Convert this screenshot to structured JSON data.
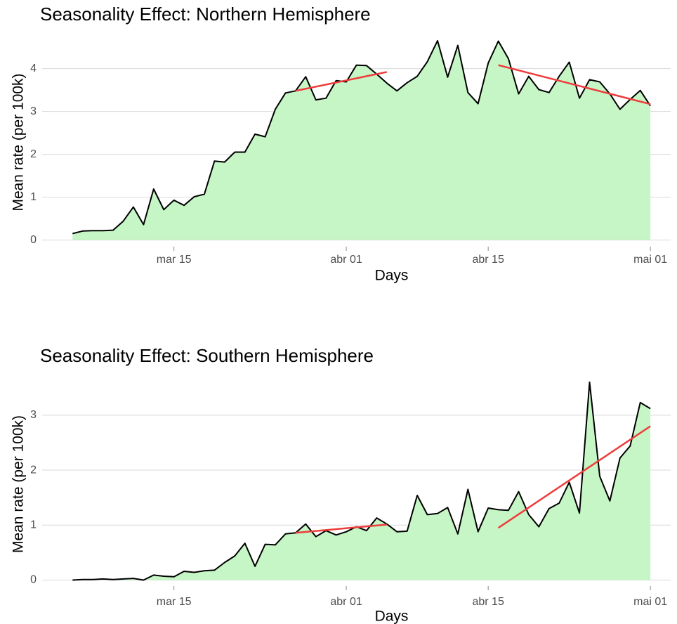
{
  "chart_data": [
    {
      "type": "area",
      "title": "Seasonality Effect: Northern Hemisphere",
      "xlabel": "Days",
      "ylabel": "Mean rate (per 100k)",
      "x": [
        "03-05",
        "03-06",
        "03-07",
        "03-08",
        "03-09",
        "03-10",
        "03-11",
        "03-12",
        "03-13",
        "03-14",
        "03-15",
        "03-16",
        "03-17",
        "03-18",
        "03-19",
        "03-20",
        "03-21",
        "03-22",
        "03-23",
        "03-24",
        "03-25",
        "03-26",
        "03-27",
        "03-28",
        "03-29",
        "03-30",
        "03-31",
        "04-01",
        "04-02",
        "04-03",
        "04-04",
        "04-05",
        "04-06",
        "04-07",
        "04-08",
        "04-09",
        "04-10",
        "04-11",
        "04-12",
        "04-13",
        "04-14",
        "04-15",
        "04-16",
        "04-17",
        "04-18",
        "04-19",
        "04-20",
        "04-21",
        "04-22",
        "04-23",
        "04-24",
        "04-25",
        "04-26",
        "04-27",
        "04-28",
        "04-29",
        "04-30",
        "05-01"
      ],
      "values": [
        0.15,
        0.21,
        0.22,
        0.22,
        0.23,
        0.44,
        0.77,
        0.36,
        1.19,
        0.71,
        0.93,
        0.81,
        1.01,
        1.07,
        1.84,
        1.82,
        2.05,
        2.05,
        2.47,
        2.41,
        3.05,
        3.43,
        3.48,
        3.81,
        3.27,
        3.31,
        3.72,
        3.69,
        4.08,
        4.07,
        3.87,
        3.66,
        3.48,
        3.67,
        3.82,
        4.16,
        4.65,
        3.8,
        4.54,
        3.44,
        3.18,
        4.13,
        4.64,
        4.23,
        3.41,
        3.82,
        3.51,
        3.44,
        3.82,
        4.15,
        3.31,
        3.74,
        3.69,
        3.41,
        3.05,
        3.28,
        3.49,
        3.13
      ],
      "color": "#c6f5c6",
      "line_color": "#000000",
      "trends": [
        {
          "x": [
            "03-27",
            "04-05"
          ],
          "values": [
            3.48,
            3.92
          ]
        },
        {
          "x": [
            "04-16",
            "05-01"
          ],
          "values": [
            4.08,
            3.17
          ]
        }
      ],
      "trend_color": "#ee3b3b",
      "xlim": [
        "03-02",
        "05-03"
      ],
      "xticks": [
        {
          "value": "03-15",
          "label": "mar 15"
        },
        {
          "value": "04-01",
          "label": "abr 01"
        },
        {
          "value": "04-15",
          "label": "abr 15"
        },
        {
          "value": "05-01",
          "label": "mai 01"
        }
      ],
      "ylim": [
        -0.22,
        4.78
      ],
      "yticks": [
        0,
        1,
        2,
        3,
        4
      ],
      "grid": true
    },
    {
      "type": "area",
      "title": "Seasonality Effect: Southern Hemisphere",
      "xlabel": "Days",
      "ylabel": "Mean rate (per 100k)",
      "x": [
        "03-05",
        "03-06",
        "03-07",
        "03-08",
        "03-09",
        "03-10",
        "03-11",
        "03-12",
        "03-13",
        "03-14",
        "03-15",
        "03-16",
        "03-17",
        "03-18",
        "03-19",
        "03-20",
        "03-21",
        "03-22",
        "03-23",
        "03-24",
        "03-25",
        "03-26",
        "03-27",
        "03-28",
        "03-29",
        "03-30",
        "03-31",
        "04-01",
        "04-02",
        "04-03",
        "04-04",
        "04-05",
        "04-06",
        "04-07",
        "04-08",
        "04-09",
        "04-10",
        "04-11",
        "04-12",
        "04-13",
        "04-14",
        "04-15",
        "04-16",
        "04-17",
        "04-18",
        "04-19",
        "04-20",
        "04-21",
        "04-22",
        "04-23",
        "04-24",
        "04-25",
        "04-26",
        "04-27",
        "04-28",
        "04-29",
        "04-30",
        "05-01"
      ],
      "values": [
        0.0,
        0.01,
        0.01,
        0.02,
        0.01,
        0.02,
        0.03,
        0.0,
        0.09,
        0.07,
        0.06,
        0.16,
        0.14,
        0.17,
        0.18,
        0.32,
        0.44,
        0.67,
        0.25,
        0.65,
        0.64,
        0.84,
        0.86,
        1.02,
        0.79,
        0.9,
        0.82,
        0.88,
        0.97,
        0.9,
        1.13,
        1.02,
        0.88,
        0.89,
        1.54,
        1.19,
        1.21,
        1.32,
        0.84,
        1.65,
        0.88,
        1.31,
        1.28,
        1.27,
        1.61,
        1.19,
        0.97,
        1.3,
        1.4,
        1.78,
        1.22,
        3.6,
        1.89,
        1.44,
        2.22,
        2.44,
        3.23,
        3.12
      ],
      "color": "#c6f5c6",
      "line_color": "#000000",
      "trends": [
        {
          "x": [
            "03-27",
            "04-05"
          ],
          "values": [
            0.86,
            1.01
          ]
        },
        {
          "x": [
            "04-16",
            "05-01"
          ],
          "values": [
            0.95,
            2.8
          ]
        }
      ],
      "trend_color": "#ee3b3b",
      "xlim": [
        "03-02",
        "05-03"
      ],
      "xticks": [
        {
          "value": "03-15",
          "label": "mar 15"
        },
        {
          "value": "04-01",
          "label": "abr 01"
        },
        {
          "value": "04-15",
          "label": "abr 15"
        },
        {
          "value": "05-01",
          "label": "mai 01"
        }
      ],
      "ylim": [
        -0.16,
        3.65
      ],
      "yticks": [
        0,
        1,
        2,
        3
      ],
      "grid": true
    }
  ]
}
